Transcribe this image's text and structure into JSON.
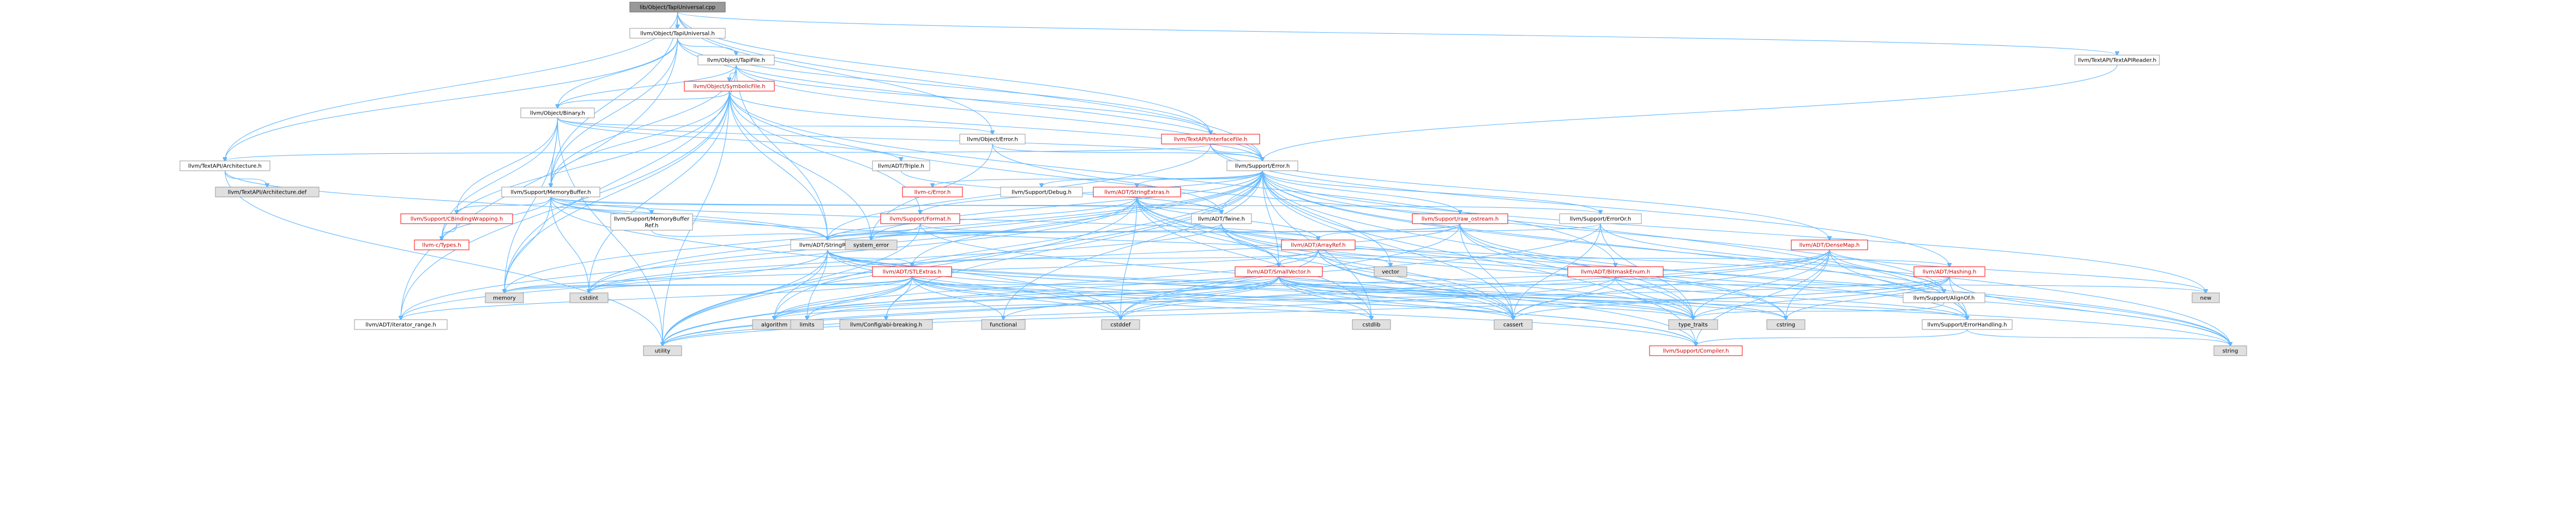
{
  "diagram": {
    "nodes": [
      {
        "id": "root",
        "label": "lib/Object/TapiUniversal.cpp",
        "kind": "root"
      },
      {
        "id": "tapiuniversal_h",
        "label": "llvm/Object/TapiUniversal.h",
        "kind": "normal"
      },
      {
        "id": "textapiheader",
        "label": "llvm/TextAPI/TextAPIReader.h",
        "kind": "normal"
      },
      {
        "id": "tapifile",
        "label": "llvm/Object/TapiFile.h",
        "kind": "normal"
      },
      {
        "id": "symbolicfile",
        "label": "llvm/Object/SymbolicFile.h",
        "kind": "red"
      },
      {
        "id": "binary",
        "label": "llvm/Object/Binary.h",
        "kind": "normal"
      },
      {
        "id": "objerror",
        "label": "llvm/Object/Error.h",
        "kind": "normal"
      },
      {
        "id": "interfacefile",
        "label": "llvm/TextAPI/InterfaceFile.h",
        "kind": "red"
      },
      {
        "id": "triple",
        "label": "llvm/ADT/Triple.h",
        "kind": "normal"
      },
      {
        "id": "architecture",
        "label": "llvm/TextAPI/Architecture.h",
        "kind": "normal"
      },
      {
        "id": "archdef",
        "label": "llvm/TextAPI/Architecture.def",
        "kind": "gray"
      },
      {
        "id": "memorybuffer",
        "label": "llvm/Support/MemoryBuffer.h",
        "kind": "normal"
      },
      {
        "id": "supporterror",
        "label": "llvm/Support/Error.h",
        "kind": "normal"
      },
      {
        "id": "cbinding",
        "label": "llvm/Support/CBindingWrapping.h",
        "kind": "red"
      },
      {
        "id": "ctypes",
        "label": "llvm-c/Types.h",
        "kind": "red"
      },
      {
        "id": "memorybufferref",
        "label": "llvm/Support/MemoryBuffer Ref.h",
        "kind": "normal"
      },
      {
        "id": "llvmc_error",
        "label": "llvm-c/Error.h",
        "kind": "red"
      },
      {
        "id": "debug",
        "label": "llvm/Support/Debug.h",
        "kind": "normal"
      },
      {
        "id": "stringextras",
        "label": "llvm/ADT/StringExtras.h",
        "kind": "red"
      },
      {
        "id": "twine",
        "label": "llvm/ADT/Twine.h",
        "kind": "normal"
      },
      {
        "id": "format",
        "label": "llvm/Support/Format.h",
        "kind": "red"
      },
      {
        "id": "raw_ostream",
        "label": "llvm/Support/raw_ostream.h",
        "kind": "red"
      },
      {
        "id": "erroror",
        "label": "llvm/Support/ErrorOr.h",
        "kind": "normal"
      },
      {
        "id": "stringref",
        "label": "llvm/ADT/StringRef.h",
        "kind": "normal"
      },
      {
        "id": "arrayref",
        "label": "llvm/ADT/ArrayRef.h",
        "kind": "red"
      },
      {
        "id": "densemap",
        "label": "llvm/ADT/DenseMap.h",
        "kind": "red"
      },
      {
        "id": "stlextras",
        "label": "llvm/ADT/STLExtras.h",
        "kind": "red"
      },
      {
        "id": "smallvector",
        "label": "llvm/ADT/SmallVector.h",
        "kind": "red"
      },
      {
        "id": "bitmaskenum",
        "label": "llvm/ADT/BitmaskEnum.h",
        "kind": "red"
      },
      {
        "id": "hashing",
        "label": "llvm/ADT/Hashing.h",
        "kind": "red"
      },
      {
        "id": "alignof",
        "label": "llvm/Support/AlignOf.h",
        "kind": "normal"
      },
      {
        "id": "iterator_range",
        "label": "llvm/ADT/iterator_range.h",
        "kind": "normal"
      },
      {
        "id": "errorhandling",
        "label": "llvm/Support/ErrorHandling.h",
        "kind": "normal"
      },
      {
        "id": "compiler",
        "label": "llvm/Support/Compiler.h",
        "kind": "red"
      },
      {
        "id": "system_error",
        "label": "system_error",
        "kind": "gray"
      },
      {
        "id": "vector",
        "label": "vector",
        "kind": "gray"
      },
      {
        "id": "memory",
        "label": "memory",
        "kind": "gray"
      },
      {
        "id": "cstdint",
        "label": "cstdint",
        "kind": "gray"
      },
      {
        "id": "algorithm",
        "label": "algorithm",
        "kind": "gray"
      },
      {
        "id": "limits",
        "label": "limits",
        "kind": "gray"
      },
      {
        "id": "llvmconfig",
        "label": "llvm/Config/abi-breaking.h",
        "kind": "gray"
      },
      {
        "id": "functional",
        "label": "functional",
        "kind": "gray"
      },
      {
        "id": "cstddef",
        "label": "cstddef",
        "kind": "gray"
      },
      {
        "id": "cstdlib",
        "label": "cstdlib",
        "kind": "gray"
      },
      {
        "id": "cassert",
        "label": "cassert",
        "kind": "gray"
      },
      {
        "id": "type_traits",
        "label": "type_traits",
        "kind": "gray"
      },
      {
        "id": "cstring",
        "label": "cstring",
        "kind": "gray"
      },
      {
        "id": "new",
        "label": "new",
        "kind": "gray"
      },
      {
        "id": "string",
        "label": "string",
        "kind": "gray"
      },
      {
        "id": "utility",
        "label": "utility",
        "kind": "gray"
      }
    ],
    "edges": [
      [
        "root",
        "tapiuniversal_h"
      ],
      [
        "root",
        "textapiheader"
      ],
      [
        "root",
        "objerror"
      ],
      [
        "root",
        "supporterror"
      ],
      [
        "root",
        "memorybuffer"
      ],
      [
        "root",
        "architecture"
      ],
      [
        "root",
        "interfacefile"
      ],
      [
        "tapiuniversal_h",
        "tapifile"
      ],
      [
        "tapiuniversal_h",
        "binary"
      ],
      [
        "tapiuniversal_h",
        "memorybuffer"
      ],
      [
        "tapiuniversal_h",
        "supporterror"
      ],
      [
        "tapiuniversal_h",
        "interfacefile"
      ],
      [
        "tapiuniversal_h",
        "architecture"
      ],
      [
        "tapiuniversal_h",
        "iterator_range"
      ],
      [
        "textapiheader",
        "supporterror"
      ],
      [
        "tapifile",
        "symbolicfile"
      ],
      [
        "tapifile",
        "binary"
      ],
      [
        "tapifile",
        "memorybuffer"
      ],
      [
        "tapifile",
        "stringref"
      ],
      [
        "tapifile",
        "supporterror"
      ],
      [
        "tapifile",
        "interfacefile"
      ],
      [
        "tapifile",
        "memory"
      ],
      [
        "symbolicfile",
        "binary"
      ],
      [
        "symbolicfile",
        "memorybuffer"
      ],
      [
        "symbolicfile",
        "format"
      ],
      [
        "symbolicfile",
        "stringref"
      ],
      [
        "symbolicfile",
        "supporterror"
      ],
      [
        "symbolicfile",
        "system_error"
      ],
      [
        "symbolicfile",
        "cstdint"
      ],
      [
        "symbolicfile",
        "memory"
      ],
      [
        "symbolicfile",
        "errorhandling"
      ],
      [
        "symbolicfile",
        "iterator_range"
      ],
      [
        "symbolicfile",
        "ctypes"
      ],
      [
        "symbolicfile",
        "utility"
      ],
      [
        "symbolicfile",
        "bitmaskenum"
      ],
      [
        "binary",
        "objerror"
      ],
      [
        "binary",
        "memorybuffer"
      ],
      [
        "binary",
        "supporterror"
      ],
      [
        "binary",
        "triple"
      ],
      [
        "binary",
        "ctypes"
      ],
      [
        "binary",
        "memory"
      ],
      [
        "binary",
        "utility"
      ],
      [
        "binary",
        "cbinding"
      ],
      [
        "objerror",
        "supporterror"
      ],
      [
        "objerror",
        "system_error"
      ],
      [
        "objerror",
        "twine"
      ],
      [
        "interfacefile",
        "supporterror"
      ],
      [
        "interfacefile",
        "architecture"
      ],
      [
        "interfacefile",
        "densemap"
      ],
      [
        "interfacefile",
        "stringref"
      ],
      [
        "interfacefile",
        "hashing"
      ],
      [
        "triple",
        "twine"
      ],
      [
        "architecture",
        "archdef"
      ],
      [
        "architecture",
        "stringref"
      ],
      [
        "architecture",
        "utility"
      ],
      [
        "memorybuffer",
        "cbinding"
      ],
      [
        "memorybuffer",
        "ctypes"
      ],
      [
        "memorybuffer",
        "memorybufferref"
      ],
      [
        "memorybuffer",
        "arrayref"
      ],
      [
        "memorybuffer",
        "stringref"
      ],
      [
        "memorybuffer",
        "twine"
      ],
      [
        "memorybuffer",
        "alignof"
      ],
      [
        "memorybuffer",
        "erroror"
      ],
      [
        "memorybuffer",
        "cstddef"
      ],
      [
        "memorybuffer",
        "cstdint"
      ],
      [
        "memorybuffer",
        "memory"
      ],
      [
        "cbinding",
        "ctypes"
      ],
      [
        "memorybufferref",
        "stringref"
      ],
      [
        "supporterror",
        "llvmc_error"
      ],
      [
        "supporterror",
        "stlextras"
      ],
      [
        "supporterror",
        "smallvector"
      ],
      [
        "supporterror",
        "stringextras"
      ],
      [
        "supporterror",
        "twine"
      ],
      [
        "supporterror",
        "llvmconfig"
      ],
      [
        "supporterror",
        "alignof"
      ],
      [
        "supporterror",
        "compiler"
      ],
      [
        "supporterror",
        "debug"
      ],
      [
        "supporterror",
        "erroror"
      ],
      [
        "supporterror",
        "errorhandling"
      ],
      [
        "supporterror",
        "format"
      ],
      [
        "supporterror",
        "raw_ostream"
      ],
      [
        "supporterror",
        "algorithm"
      ],
      [
        "supporterror",
        "cassert"
      ],
      [
        "supporterror",
        "cstdint"
      ],
      [
        "supporterror",
        "cstdlib"
      ],
      [
        "supporterror",
        "functional"
      ],
      [
        "supporterror",
        "memory"
      ],
      [
        "supporterror",
        "new"
      ],
      [
        "supporterror",
        "string"
      ],
      [
        "supporterror",
        "system_error"
      ],
      [
        "supporterror",
        "type_traits"
      ],
      [
        "supporterror",
        "utility"
      ],
      [
        "supporterror",
        "vector"
      ],
      [
        "stringextras",
        "arrayref"
      ],
      [
        "stringextras",
        "smallvector"
      ],
      [
        "stringextras",
        "stringref"
      ],
      [
        "stringextras",
        "twine"
      ],
      [
        "stringextras",
        "cassert"
      ],
      [
        "stringextras",
        "cstddef"
      ],
      [
        "stringextras",
        "cstdint"
      ],
      [
        "stringextras",
        "cstdlib"
      ],
      [
        "stringextras",
        "cstring"
      ],
      [
        "stringextras",
        "iterator_range"
      ],
      [
        "stringextras",
        "string"
      ],
      [
        "stringextras",
        "utility"
      ],
      [
        "twine",
        "smallvector"
      ],
      [
        "twine",
        "stringref"
      ],
      [
        "twine",
        "errorhandling"
      ],
      [
        "twine",
        "cassert"
      ],
      [
        "twine",
        "cstdint"
      ],
      [
        "twine",
        "string"
      ],
      [
        "format",
        "arrayref"
      ],
      [
        "format",
        "stringref"
      ],
      [
        "format",
        "cassert"
      ],
      [
        "format",
        "cstdio"
      ],
      [
        "format",
        "tuple"
      ],
      [
        "format",
        "utility"
      ],
      [
        "raw_ostream",
        "arrayref"
      ],
      [
        "raw_ostream",
        "stringref"
      ],
      [
        "raw_ostream",
        "cassert"
      ],
      [
        "raw_ostream",
        "cstddef"
      ],
      [
        "raw_ostream",
        "cstdint"
      ],
      [
        "raw_ostream",
        "cstring"
      ],
      [
        "raw_ostream",
        "optional"
      ],
      [
        "raw_ostream",
        "string"
      ],
      [
        "raw_ostream",
        "system_error"
      ],
      [
        "raw_ostream",
        "type_traits"
      ],
      [
        "erroror",
        "alignof"
      ],
      [
        "erroror",
        "cassert"
      ],
      [
        "erroror",
        "system_error"
      ],
      [
        "erroror",
        "type_traits"
      ],
      [
        "erroror",
        "utility"
      ],
      [
        "stringref",
        "stlextras"
      ],
      [
        "stringref",
        "iterator_range"
      ],
      [
        "stringref",
        "compiler"
      ],
      [
        "stringref",
        "algorithm"
      ],
      [
        "stringref",
        "cassert"
      ],
      [
        "stringref",
        "cstddef"
      ],
      [
        "stringref",
        "cstring"
      ],
      [
        "stringref",
        "limits"
      ],
      [
        "stringref",
        "string"
      ],
      [
        "stringref",
        "type_traits"
      ],
      [
        "stringref",
        "utility"
      ],
      [
        "arrayref",
        "hashing"
      ],
      [
        "arrayref",
        "smallvector"
      ],
      [
        "arrayref",
        "stlextras"
      ],
      [
        "arrayref",
        "compiler"
      ],
      [
        "arrayref",
        "algorithm"
      ],
      [
        "arrayref",
        "array"
      ],
      [
        "arrayref",
        "cassert"
      ],
      [
        "arrayref",
        "cstddef"
      ],
      [
        "arrayref",
        "initializer_list"
      ],
      [
        "arrayref",
        "iterator"
      ],
      [
        "arrayref",
        "memory"
      ],
      [
        "arrayref",
        "type_traits"
      ],
      [
        "arrayref",
        "vector"
      ],
      [
        "densemap",
        "alignof"
      ],
      [
        "densemap",
        "compiler"
      ],
      [
        "densemap",
        "errorhandling"
      ],
      [
        "densemap",
        "algorithm"
      ],
      [
        "densemap",
        "cassert"
      ],
      [
        "densemap",
        "cstddef"
      ],
      [
        "densemap",
        "cstring"
      ],
      [
        "densemap",
        "new"
      ],
      [
        "densemap",
        "type_traits"
      ],
      [
        "densemap",
        "utility"
      ],
      [
        "stlextras",
        "llvmconfig"
      ],
      [
        "stlextras",
        "compiler"
      ],
      [
        "stlextras",
        "algorithm"
      ],
      [
        "stlextras",
        "cassert"
      ],
      [
        "stlextras",
        "cstddef"
      ],
      [
        "stlextras",
        "cstdint"
      ],
      [
        "stlextras",
        "cstdlib"
      ],
      [
        "stlextras",
        "functional"
      ],
      [
        "stlextras",
        "limits"
      ],
      [
        "stlextras",
        "memory"
      ],
      [
        "stlextras",
        "iterator_range"
      ],
      [
        "stlextras",
        "type_traits"
      ],
      [
        "stlextras",
        "utility"
      ],
      [
        "smallvector",
        "compiler"
      ],
      [
        "smallvector",
        "algorithm"
      ],
      [
        "smallvector",
        "cassert"
      ],
      [
        "smallvector",
        "cstddef"
      ],
      [
        "smallvector",
        "cstdlib"
      ],
      [
        "smallvector",
        "cstring"
      ],
      [
        "smallvector",
        "functional"
      ],
      [
        "smallvector",
        "limits"
      ],
      [
        "smallvector",
        "memory"
      ],
      [
        "smallvector",
        "new"
      ],
      [
        "smallvector",
        "type_traits"
      ],
      [
        "smallvector",
        "utility"
      ],
      [
        "smallvector",
        "errorhandling"
      ],
      [
        "bitmaskenum",
        "cassert"
      ],
      [
        "bitmaskenum",
        "type_traits"
      ],
      [
        "bitmaskenum",
        "utility"
      ],
      [
        "bitmaskenum",
        "errorhandling"
      ],
      [
        "hashing",
        "errorhandling"
      ],
      [
        "hashing",
        "algorithm"
      ],
      [
        "hashing",
        "cassert"
      ],
      [
        "hashing",
        "cstring"
      ],
      [
        "hashing",
        "string"
      ],
      [
        "hashing",
        "type_traits"
      ],
      [
        "hashing",
        "utility"
      ],
      [
        "alignof",
        "type_traits"
      ],
      [
        "errorhandling",
        "compiler"
      ],
      [
        "errorhandling",
        "string"
      ]
    ]
  }
}
